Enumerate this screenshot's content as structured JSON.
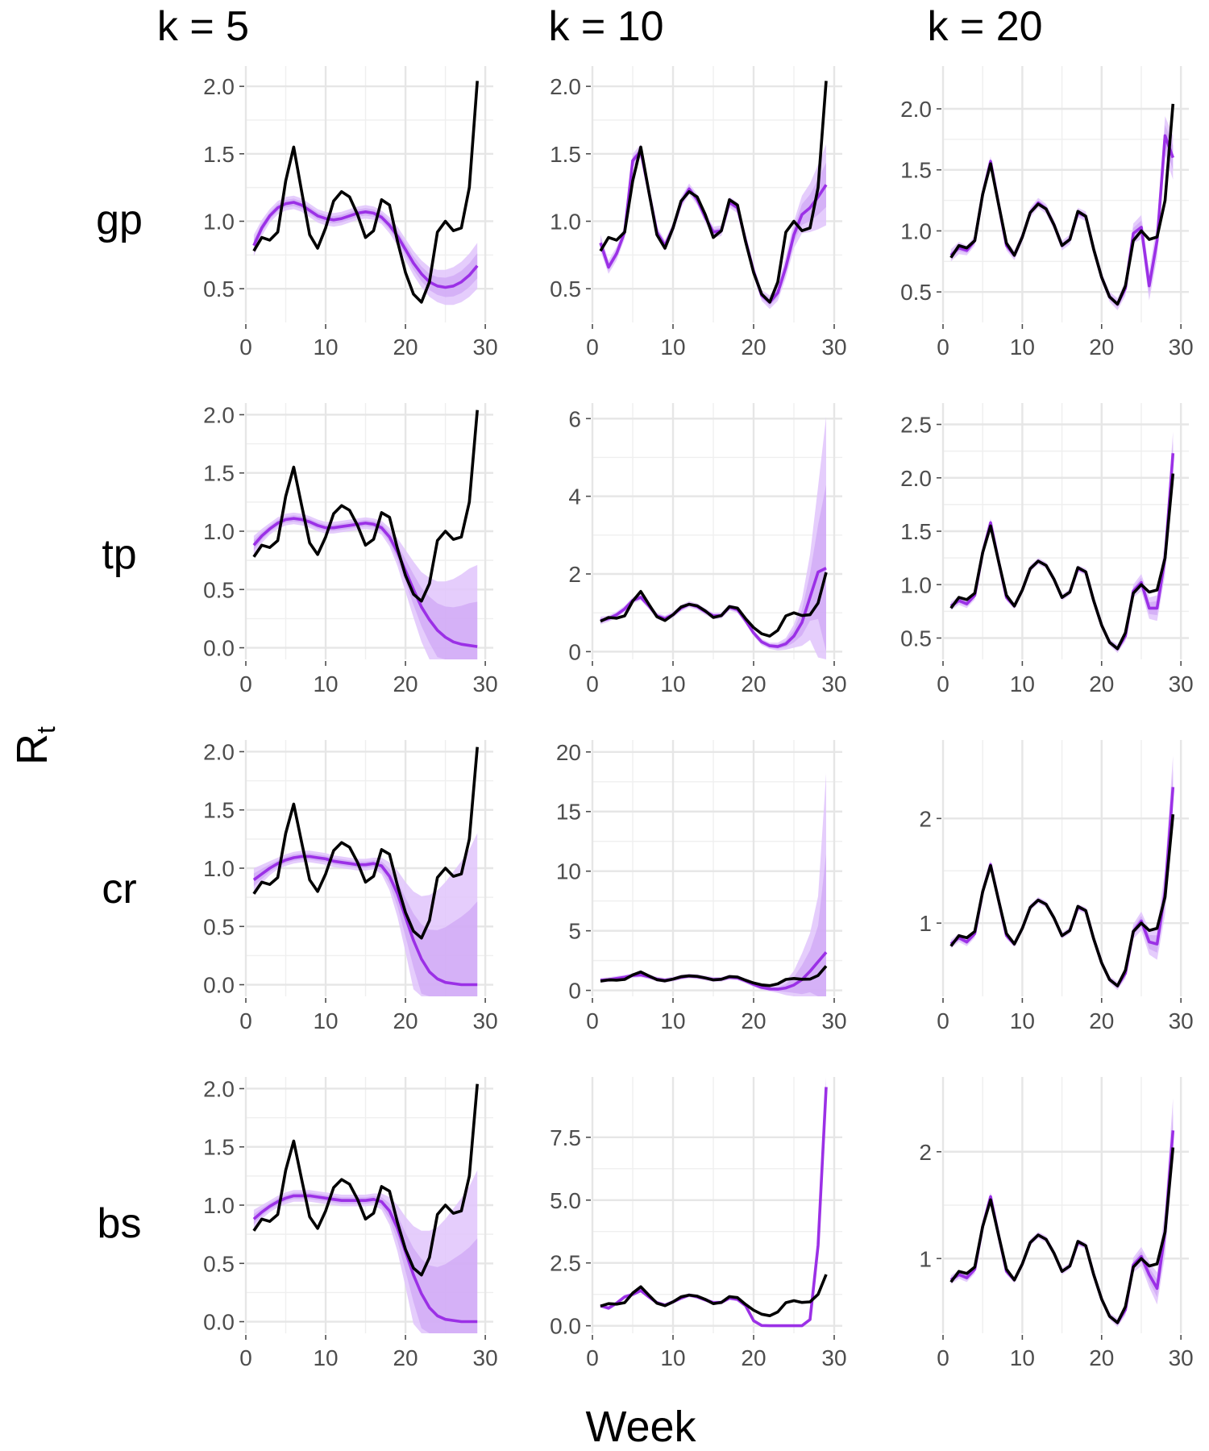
{
  "figure": {
    "column_headers": [
      "k = 5",
      "k = 10",
      "k = 20"
    ],
    "row_headers": [
      "gp",
      "tp",
      "cr",
      "bs"
    ],
    "x_axis_title": "Week",
    "y_axis_title": "R",
    "y_axis_title_subscript": "t"
  },
  "colors": {
    "observed": "#000000",
    "estimate": "#9b30e6",
    "band_outer": "#e0c4fb",
    "band_inner": "#c99af3",
    "grid": "#e6e6e6"
  },
  "chart_data": {
    "type": "line",
    "x": [
      1,
      2,
      3,
      4,
      5,
      6,
      7,
      8,
      9,
      10,
      11,
      12,
      13,
      14,
      15,
      16,
      17,
      18,
      19,
      20,
      21,
      22,
      23,
      24,
      25,
      26,
      27,
      28,
      29
    ],
    "observed_name": "",
    "observed": [
      0.78,
      0.88,
      0.86,
      0.92,
      1.3,
      1.55,
      1.22,
      0.9,
      0.8,
      0.95,
      1.15,
      1.22,
      1.18,
      1.05,
      0.88,
      0.93,
      1.16,
      1.12,
      0.85,
      0.62,
      0.46,
      0.4,
      0.55,
      0.92,
      1.0,
      0.93,
      0.95,
      1.25,
      2.04
    ],
    "panels": [
      {
        "row": "gp",
        "col": "k = 5",
        "ylim": [
          0.25,
          2.15
        ],
        "y_ticks": [
          0.5,
          1.0,
          1.5,
          2.0
        ],
        "y_tick_labels": [
          "0.5",
          "1.0",
          "1.5",
          "2.0"
        ],
        "x_ticks": [
          0,
          10,
          20,
          30
        ],
        "xlim": [
          0,
          31
        ],
        "estimate": [
          0.82,
          0.95,
          1.04,
          1.1,
          1.13,
          1.14,
          1.12,
          1.08,
          1.04,
          1.02,
          1.01,
          1.02,
          1.04,
          1.06,
          1.07,
          1.06,
          1.03,
          0.97,
          0.89,
          0.79,
          0.69,
          0.61,
          0.55,
          0.52,
          0.51,
          0.52,
          0.55,
          0.6,
          0.67
        ],
        "band_half": [
          0.08,
          0.06,
          0.05,
          0.05,
          0.05,
          0.05,
          0.05,
          0.05,
          0.05,
          0.05,
          0.05,
          0.05,
          0.05,
          0.05,
          0.05,
          0.05,
          0.05,
          0.06,
          0.07,
          0.08,
          0.09,
          0.1,
          0.11,
          0.12,
          0.13,
          0.14,
          0.15,
          0.16,
          0.17
        ]
      },
      {
        "row": "gp",
        "col": "k = 10",
        "ylim": [
          0.25,
          2.15
        ],
        "y_ticks": [
          0.5,
          1.0,
          1.5,
          2.0
        ],
        "y_tick_labels": [
          "0.5",
          "1.0",
          "1.5",
          "2.0"
        ],
        "x_ticks": [
          0,
          10,
          20,
          30
        ],
        "xlim": [
          0,
          31
        ],
        "estimate": [
          0.84,
          0.66,
          0.76,
          0.92,
          1.45,
          1.52,
          1.22,
          0.92,
          0.82,
          0.95,
          1.14,
          1.24,
          1.16,
          1.03,
          0.92,
          0.93,
          1.14,
          1.1,
          0.86,
          0.63,
          0.45,
          0.4,
          0.47,
          0.66,
          0.9,
          1.05,
          1.1,
          1.18,
          1.27
        ],
        "band_half": [
          0.06,
          0.05,
          0.05,
          0.05,
          0.05,
          0.05,
          0.04,
          0.04,
          0.04,
          0.04,
          0.04,
          0.04,
          0.04,
          0.04,
          0.04,
          0.04,
          0.04,
          0.04,
          0.04,
          0.04,
          0.04,
          0.05,
          0.06,
          0.08,
          0.1,
          0.14,
          0.18,
          0.24,
          0.3
        ]
      },
      {
        "row": "gp",
        "col": "k = 20",
        "ylim": [
          0.25,
          2.35
        ],
        "y_ticks": [
          0.5,
          1.0,
          1.5,
          2.0
        ],
        "y_tick_labels": [
          "0.5",
          "1.0",
          "1.5",
          "2.0"
        ],
        "x_ticks": [
          0,
          10,
          20,
          30
        ],
        "xlim": [
          0,
          31
        ],
        "estimate": [
          0.8,
          0.86,
          0.84,
          0.92,
          1.3,
          1.57,
          1.22,
          0.88,
          0.8,
          0.95,
          1.15,
          1.23,
          1.18,
          1.05,
          0.88,
          0.93,
          1.15,
          1.12,
          0.85,
          0.62,
          0.46,
          0.4,
          0.53,
          0.98,
          1.03,
          0.55,
          0.92,
          1.78,
          1.6
        ],
        "band_half": [
          0.05,
          0.05,
          0.04,
          0.04,
          0.04,
          0.04,
          0.04,
          0.04,
          0.04,
          0.04,
          0.04,
          0.04,
          0.04,
          0.04,
          0.04,
          0.04,
          0.04,
          0.04,
          0.04,
          0.04,
          0.04,
          0.05,
          0.06,
          0.08,
          0.1,
          0.12,
          0.14,
          0.16,
          0.18
        ]
      },
      {
        "row": "tp",
        "col": "k = 5",
        "ylim": [
          -0.1,
          2.1
        ],
        "y_ticks": [
          0.0,
          0.5,
          1.0,
          1.5,
          2.0
        ],
        "y_tick_labels": [
          "0.0",
          "0.5",
          "1.0",
          "1.5",
          "2.0"
        ],
        "x_ticks": [
          0,
          10,
          20,
          30
        ],
        "xlim": [
          0,
          31
        ],
        "estimate": [
          0.88,
          0.96,
          1.02,
          1.07,
          1.1,
          1.11,
          1.1,
          1.08,
          1.05,
          1.03,
          1.03,
          1.04,
          1.05,
          1.06,
          1.07,
          1.06,
          1.03,
          0.95,
          0.82,
          0.66,
          0.5,
          0.35,
          0.24,
          0.15,
          0.09,
          0.05,
          0.03,
          0.02,
          0.01
        ],
        "band_half": [
          0.08,
          0.06,
          0.05,
          0.05,
          0.05,
          0.05,
          0.05,
          0.05,
          0.05,
          0.05,
          0.05,
          0.05,
          0.05,
          0.05,
          0.05,
          0.05,
          0.06,
          0.08,
          0.12,
          0.18,
          0.24,
          0.3,
          0.36,
          0.42,
          0.48,
          0.54,
          0.6,
          0.66,
          0.7
        ]
      },
      {
        "row": "tp",
        "col": "k = 10",
        "ylim": [
          -0.2,
          6.4
        ],
        "y_ticks": [
          0,
          2,
          4,
          6
        ],
        "y_tick_labels": [
          "0",
          "2",
          "4",
          "6"
        ],
        "x_ticks": [
          0,
          10,
          20,
          30
        ],
        "xlim": [
          0,
          31
        ],
        "estimate": [
          0.8,
          0.85,
          0.95,
          1.1,
          1.32,
          1.4,
          1.18,
          0.92,
          0.85,
          0.95,
          1.12,
          1.22,
          1.16,
          1.03,
          0.92,
          0.93,
          1.14,
          1.08,
          0.8,
          0.48,
          0.25,
          0.15,
          0.13,
          0.2,
          0.4,
          0.75,
          1.4,
          2.05,
          2.15
        ],
        "band_half": [
          0.1,
          0.08,
          0.08,
          0.08,
          0.08,
          0.08,
          0.08,
          0.08,
          0.08,
          0.08,
          0.08,
          0.08,
          0.08,
          0.08,
          0.08,
          0.08,
          0.08,
          0.08,
          0.08,
          0.08,
          0.08,
          0.08,
          0.1,
          0.15,
          0.3,
          0.6,
          1.1,
          2.2,
          3.9
        ]
      },
      {
        "row": "tp",
        "col": "k = 20",
        "ylim": [
          0.3,
          2.7
        ],
        "y_ticks": [
          0.5,
          1.0,
          1.5,
          2.0,
          2.5
        ],
        "y_tick_labels": [
          "0.5",
          "1.0",
          "1.5",
          "2.0",
          "2.5"
        ],
        "x_ticks": [
          0,
          10,
          20,
          30
        ],
        "xlim": [
          0,
          31
        ],
        "estimate": [
          0.8,
          0.85,
          0.82,
          0.9,
          1.3,
          1.58,
          1.22,
          0.88,
          0.8,
          0.95,
          1.15,
          1.22,
          1.18,
          1.05,
          0.88,
          0.93,
          1.15,
          1.12,
          0.85,
          0.62,
          0.46,
          0.4,
          0.52,
          0.94,
          1.02,
          0.78,
          0.78,
          1.25,
          2.23
        ],
        "band_half": [
          0.04,
          0.04,
          0.04,
          0.04,
          0.04,
          0.04,
          0.03,
          0.03,
          0.03,
          0.03,
          0.03,
          0.03,
          0.03,
          0.03,
          0.03,
          0.03,
          0.03,
          0.03,
          0.03,
          0.03,
          0.03,
          0.04,
          0.05,
          0.06,
          0.08,
          0.1,
          0.12,
          0.16,
          0.2
        ]
      },
      {
        "row": "cr",
        "col": "k = 5",
        "ylim": [
          -0.1,
          2.1
        ],
        "y_ticks": [
          0.0,
          0.5,
          1.0,
          1.5,
          2.0
        ],
        "y_tick_labels": [
          "0.0",
          "0.5",
          "1.0",
          "1.5",
          "2.0"
        ],
        "x_ticks": [
          0,
          10,
          20,
          30
        ],
        "xlim": [
          0,
          31
        ],
        "estimate": [
          0.9,
          0.95,
          1.0,
          1.04,
          1.07,
          1.09,
          1.1,
          1.1,
          1.09,
          1.08,
          1.06,
          1.05,
          1.04,
          1.03,
          1.03,
          1.04,
          1.02,
          0.93,
          0.78,
          0.58,
          0.38,
          0.22,
          0.11,
          0.05,
          0.02,
          0.01,
          0.0,
          0.0,
          0.0
        ],
        "band_half": [
          0.1,
          0.08,
          0.06,
          0.05,
          0.05,
          0.05,
          0.05,
          0.05,
          0.05,
          0.05,
          0.05,
          0.05,
          0.05,
          0.05,
          0.05,
          0.05,
          0.07,
          0.12,
          0.2,
          0.3,
          0.42,
          0.54,
          0.66,
          0.76,
          0.86,
          0.96,
          1.06,
          1.16,
          1.3
        ]
      },
      {
        "row": "cr",
        "col": "k = 10",
        "ylim": [
          -0.5,
          21.0
        ],
        "y_ticks": [
          0,
          5,
          10,
          15,
          20
        ],
        "y_tick_labels": [
          "0",
          "5",
          "10",
          "15",
          "20"
        ],
        "x_ticks": [
          0,
          10,
          20,
          30
        ],
        "xlim": [
          0,
          31
        ],
        "estimate": [
          0.85,
          0.9,
          1.0,
          1.1,
          1.25,
          1.3,
          1.15,
          0.95,
          0.85,
          0.95,
          1.1,
          1.2,
          1.15,
          1.03,
          0.92,
          0.93,
          1.1,
          1.05,
          0.8,
          0.5,
          0.25,
          0.12,
          0.1,
          0.2,
          0.45,
          0.9,
          1.6,
          2.4,
          3.2
        ],
        "band_half": [
          0.2,
          0.2,
          0.2,
          0.2,
          0.2,
          0.2,
          0.2,
          0.2,
          0.2,
          0.2,
          0.2,
          0.2,
          0.2,
          0.2,
          0.2,
          0.2,
          0.2,
          0.2,
          0.2,
          0.2,
          0.2,
          0.2,
          0.3,
          0.6,
          1.2,
          2.2,
          3.2,
          5.5,
          15.0
        ]
      },
      {
        "row": "cr",
        "col": "k = 20",
        "ylim": [
          0.3,
          2.75
        ],
        "y_ticks": [
          1,
          2
        ],
        "y_tick_labels": [
          "1",
          "2"
        ],
        "x_ticks": [
          0,
          10,
          20,
          30
        ],
        "xlim": [
          0,
          31
        ],
        "estimate": [
          0.8,
          0.86,
          0.82,
          0.9,
          1.3,
          1.56,
          1.22,
          0.88,
          0.8,
          0.95,
          1.15,
          1.22,
          1.18,
          1.05,
          0.88,
          0.93,
          1.15,
          1.12,
          0.85,
          0.62,
          0.46,
          0.4,
          0.52,
          0.92,
          1.02,
          0.82,
          0.8,
          1.3,
          2.3
        ],
        "band_half": [
          0.04,
          0.04,
          0.04,
          0.04,
          0.04,
          0.04,
          0.03,
          0.03,
          0.03,
          0.03,
          0.03,
          0.03,
          0.03,
          0.03,
          0.03,
          0.03,
          0.03,
          0.03,
          0.03,
          0.03,
          0.03,
          0.04,
          0.05,
          0.07,
          0.09,
          0.12,
          0.15,
          0.22,
          0.3
        ]
      },
      {
        "row": "bs",
        "col": "k = 5",
        "ylim": [
          -0.1,
          2.1
        ],
        "y_ticks": [
          0.0,
          0.5,
          1.0,
          1.5,
          2.0
        ],
        "y_tick_labels": [
          "0.0",
          "0.5",
          "1.0",
          "1.5",
          "2.0"
        ],
        "x_ticks": [
          0,
          10,
          20,
          30
        ],
        "xlim": [
          0,
          31
        ],
        "estimate": [
          0.88,
          0.94,
          0.99,
          1.03,
          1.06,
          1.08,
          1.08,
          1.08,
          1.07,
          1.06,
          1.05,
          1.04,
          1.04,
          1.04,
          1.04,
          1.05,
          1.03,
          0.95,
          0.8,
          0.6,
          0.4,
          0.24,
          0.12,
          0.05,
          0.02,
          0.01,
          0.0,
          0.0,
          0.0
        ],
        "band_half": [
          0.08,
          0.06,
          0.05,
          0.05,
          0.05,
          0.05,
          0.05,
          0.05,
          0.05,
          0.05,
          0.05,
          0.05,
          0.05,
          0.05,
          0.05,
          0.05,
          0.07,
          0.12,
          0.2,
          0.3,
          0.42,
          0.54,
          0.66,
          0.76,
          0.86,
          0.96,
          1.06,
          1.16,
          1.3
        ]
      },
      {
        "row": "bs",
        "col": "k = 10",
        "ylim": [
          -0.3,
          9.9
        ],
        "y_ticks": [
          0.0,
          2.5,
          5.0,
          7.5
        ],
        "y_tick_labels": [
          "0.0",
          "2.5",
          "5.0",
          "7.5"
        ],
        "x_ticks": [
          0,
          10,
          20,
          30
        ],
        "xlim": [
          0,
          31
        ],
        "estimate": [
          0.8,
          0.7,
          0.9,
          1.15,
          1.25,
          1.4,
          1.15,
          0.92,
          0.82,
          0.95,
          1.1,
          1.22,
          1.15,
          1.03,
          0.92,
          0.93,
          1.1,
          1.05,
          0.8,
          0.2,
          0.01,
          0.0,
          0.0,
          0.0,
          0.0,
          0.0,
          0.25,
          3.2,
          9.5
        ],
        "band_half": [
          0.08,
          0.08,
          0.08,
          0.08,
          0.08,
          0.08,
          0.08,
          0.08,
          0.08,
          0.08,
          0.08,
          0.08,
          0.08,
          0.08,
          0.08,
          0.08,
          0.08,
          0.08,
          0.08,
          0.08,
          0.02,
          0.01,
          0.01,
          0.01,
          0.01,
          0.01,
          0.05,
          0.2,
          0.4
        ]
      },
      {
        "row": "bs",
        "col": "k = 20",
        "ylim": [
          0.3,
          2.7
        ],
        "y_ticks": [
          1,
          2
        ],
        "y_tick_labels": [
          "1",
          "2"
        ],
        "x_ticks": [
          0,
          10,
          20,
          30
        ],
        "xlim": [
          0,
          31
        ],
        "estimate": [
          0.8,
          0.85,
          0.82,
          0.9,
          1.3,
          1.58,
          1.22,
          0.88,
          0.8,
          0.95,
          1.15,
          1.22,
          1.18,
          1.05,
          0.88,
          0.93,
          1.15,
          1.12,
          0.85,
          0.62,
          0.46,
          0.4,
          0.52,
          0.94,
          1.02,
          0.85,
          0.72,
          1.25,
          2.2
        ],
        "band_half": [
          0.04,
          0.04,
          0.04,
          0.04,
          0.04,
          0.04,
          0.03,
          0.03,
          0.03,
          0.03,
          0.03,
          0.03,
          0.03,
          0.03,
          0.03,
          0.03,
          0.03,
          0.03,
          0.03,
          0.03,
          0.03,
          0.04,
          0.05,
          0.07,
          0.09,
          0.12,
          0.15,
          0.22,
          0.3
        ]
      }
    ]
  }
}
